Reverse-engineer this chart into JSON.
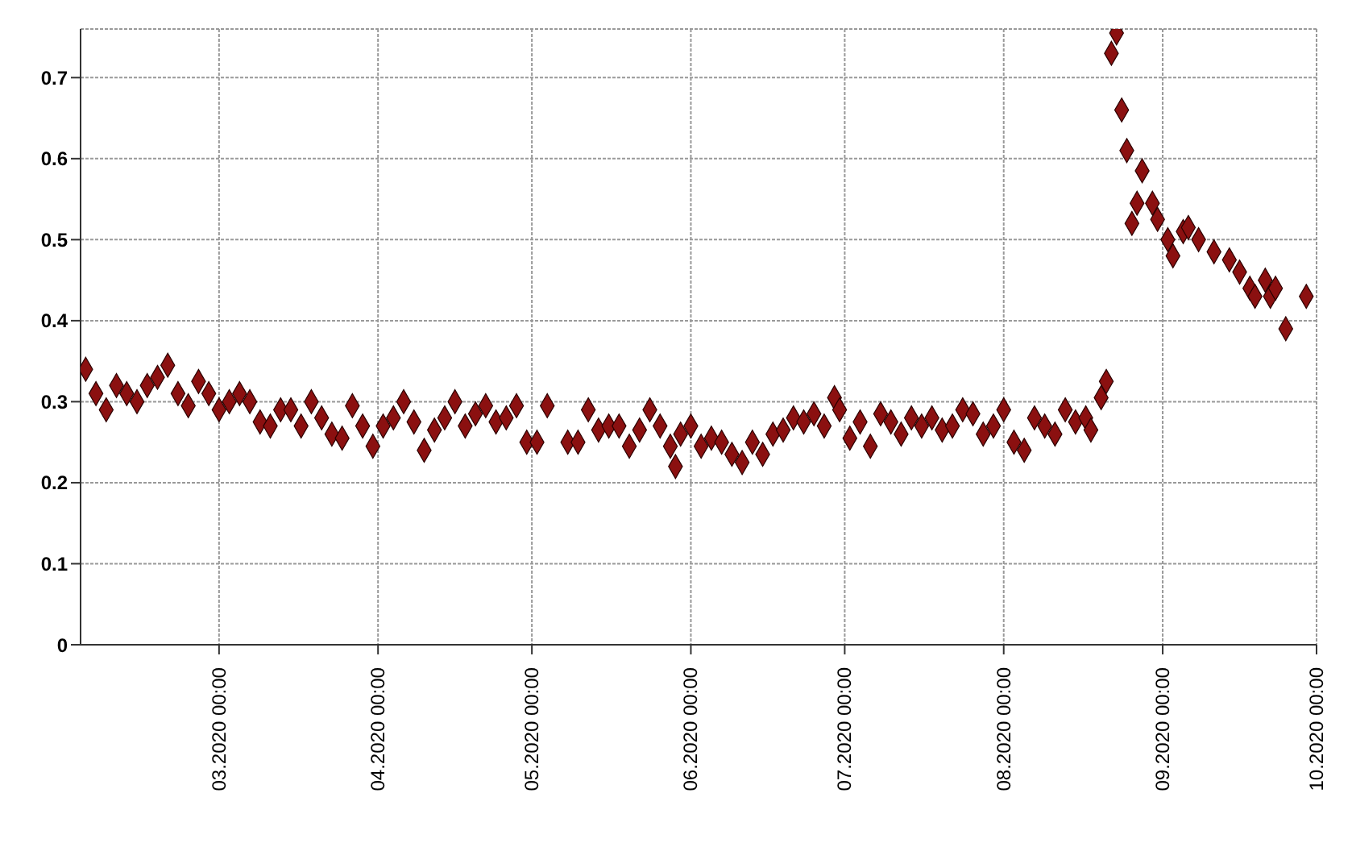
{
  "chart_data": {
    "type": "scatter",
    "marker": "diamond",
    "grid": true,
    "legend": false,
    "xlim": [
      "2020-02-03",
      "2020-10-01"
    ],
    "xticks": [
      {
        "value": "2020-03-01",
        "label": "03.2020 00:00"
      },
      {
        "value": "2020-04-01",
        "label": "04.2020 00:00"
      },
      {
        "value": "2020-05-01",
        "label": "05.2020 00:00"
      },
      {
        "value": "2020-06-01",
        "label": "06.2020 00:00"
      },
      {
        "value": "2020-07-01",
        "label": "07.2020 00:00"
      },
      {
        "value": "2020-08-01",
        "label": "08.2020 00:00"
      },
      {
        "value": "2020-09-01",
        "label": "09.2020 00:00"
      },
      {
        "value": "2020-10-01",
        "label": "10.2020 00:00"
      }
    ],
    "ylim": [
      0,
      0.76
    ],
    "yticks": [
      0,
      0.1,
      0.2,
      0.3,
      0.4,
      0.5,
      0.6,
      0.7
    ],
    "series": [
      {
        "color": "#8b1010",
        "x": [
          "2020-02-04",
          "2020-02-06",
          "2020-02-08",
          "2020-02-10",
          "2020-02-12",
          "2020-02-14",
          "2020-02-16",
          "2020-02-18",
          "2020-02-20",
          "2020-02-22",
          "2020-02-24",
          "2020-02-26",
          "2020-02-28",
          "2020-03-01",
          "2020-03-03",
          "2020-03-05",
          "2020-03-07",
          "2020-03-09",
          "2020-03-11",
          "2020-03-13",
          "2020-03-15",
          "2020-03-17",
          "2020-03-19",
          "2020-03-21",
          "2020-03-23",
          "2020-03-25",
          "2020-03-27",
          "2020-03-29",
          "2020-03-31",
          "2020-04-02",
          "2020-04-04",
          "2020-04-06",
          "2020-04-08",
          "2020-04-10",
          "2020-04-12",
          "2020-04-14",
          "2020-04-16",
          "2020-04-18",
          "2020-04-20",
          "2020-04-22",
          "2020-04-24",
          "2020-04-26",
          "2020-04-28",
          "2020-04-30",
          "2020-05-02",
          "2020-05-04",
          "2020-05-08",
          "2020-05-10",
          "2020-05-12",
          "2020-05-14",
          "2020-05-16",
          "2020-05-18",
          "2020-05-20",
          "2020-05-22",
          "2020-05-24",
          "2020-05-26",
          "2020-05-28",
          "2020-05-29",
          "2020-05-30",
          "2020-06-01",
          "2020-06-03",
          "2020-06-05",
          "2020-06-07",
          "2020-06-09",
          "2020-06-11",
          "2020-06-13",
          "2020-06-15",
          "2020-06-17",
          "2020-06-19",
          "2020-06-21",
          "2020-06-23",
          "2020-06-25",
          "2020-06-27",
          "2020-06-29",
          "2020-06-30",
          "2020-07-02",
          "2020-07-04",
          "2020-07-06",
          "2020-07-08",
          "2020-07-10",
          "2020-07-12",
          "2020-07-14",
          "2020-07-16",
          "2020-07-18",
          "2020-07-20",
          "2020-07-22",
          "2020-07-24",
          "2020-07-26",
          "2020-07-28",
          "2020-07-30",
          "2020-08-01",
          "2020-08-03",
          "2020-08-05",
          "2020-08-07",
          "2020-08-09",
          "2020-08-11",
          "2020-08-13",
          "2020-08-15",
          "2020-08-17",
          "2020-08-18",
          "2020-08-20",
          "2020-08-21",
          "2020-08-22",
          "2020-08-23",
          "2020-08-24",
          "2020-08-25",
          "2020-08-26",
          "2020-08-27",
          "2020-08-28",
          "2020-08-30",
          "2020-08-31",
          "2020-09-02",
          "2020-09-03",
          "2020-09-05",
          "2020-09-06",
          "2020-09-08",
          "2020-09-11",
          "2020-09-14",
          "2020-09-16",
          "2020-09-18",
          "2020-09-19",
          "2020-09-21",
          "2020-09-22",
          "2020-09-23",
          "2020-09-25",
          "2020-09-29"
        ],
        "values": [
          0.34,
          0.31,
          0.29,
          0.32,
          0.31,
          0.3,
          0.32,
          0.33,
          0.345,
          0.31,
          0.295,
          0.325,
          0.31,
          0.29,
          0.3,
          0.31,
          0.3,
          0.275,
          0.27,
          0.29,
          0.29,
          0.27,
          0.3,
          0.28,
          0.26,
          0.255,
          0.295,
          0.27,
          0.245,
          0.27,
          0.28,
          0.3,
          0.275,
          0.24,
          0.265,
          0.28,
          0.3,
          0.27,
          0.285,
          0.295,
          0.275,
          0.28,
          0.295,
          0.25,
          0.25,
          0.295,
          0.25,
          0.25,
          0.29,
          0.265,
          0.27,
          0.27,
          0.245,
          0.265,
          0.29,
          0.27,
          0.245,
          0.22,
          0.26,
          0.27,
          0.245,
          0.255,
          0.25,
          0.235,
          0.225,
          0.25,
          0.235,
          0.26,
          0.265,
          0.28,
          0.275,
          0.285,
          0.27,
          0.305,
          0.29,
          0.255,
          0.275,
          0.245,
          0.285,
          0.275,
          0.26,
          0.28,
          0.27,
          0.28,
          0.265,
          0.27,
          0.29,
          0.285,
          0.26,
          0.27,
          0.29,
          0.25,
          0.24,
          0.28,
          0.27,
          0.26,
          0.29,
          0.275,
          0.28,
          0.265,
          0.305,
          0.325,
          0.73,
          0.755,
          0.66,
          0.61,
          0.52,
          0.545,
          0.585,
          0.545,
          0.525,
          0.5,
          0.48,
          0.51,
          0.515,
          0.5,
          0.485,
          0.475,
          0.46,
          0.44,
          0.43,
          0.45,
          0.43,
          0.44,
          0.39,
          0.43
        ]
      }
    ]
  }
}
